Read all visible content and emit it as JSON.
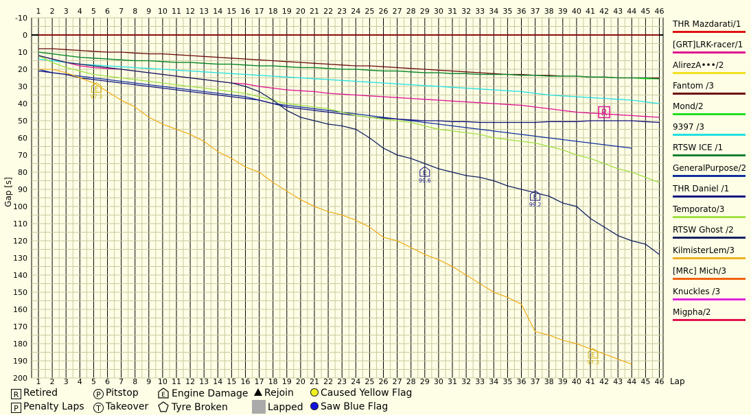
{
  "chart_data": {
    "type": "line",
    "xlabel": "Lap",
    "ylabel": "Gap [s]",
    "x": [
      1,
      2,
      3,
      4,
      5,
      6,
      7,
      8,
      9,
      10,
      11,
      12,
      13,
      14,
      15,
      16,
      17,
      18,
      19,
      20,
      21,
      22,
      23,
      24,
      25,
      26,
      27,
      28,
      29,
      30,
      31,
      32,
      33,
      34,
      35,
      36,
      37,
      38,
      39,
      40,
      41,
      42,
      43,
      44,
      45,
      46
    ],
    "xlim": [
      1,
      46.6
    ],
    "ylim": [
      -10,
      200
    ],
    "y_inverted": true,
    "yticks": [
      -10,
      0,
      10,
      20,
      30,
      40,
      50,
      60,
      70,
      80,
      90,
      100,
      110,
      120,
      130,
      140,
      150,
      160,
      170,
      180,
      190,
      200
    ],
    "grid": true,
    "series": [
      {
        "name": "THR Mazdarati/1",
        "color": "#e01010",
        "values": [
          0,
          0,
          0,
          0,
          0,
          0,
          0,
          0,
          0,
          0,
          0,
          0,
          0,
          0,
          0,
          0,
          0,
          0,
          0,
          0,
          0,
          0,
          0,
          0,
          0,
          0,
          0,
          0,
          0,
          0,
          0,
          0,
          0,
          0,
          0,
          0,
          0,
          0,
          0,
          0,
          0,
          0,
          0,
          0,
          0,
          0
        ]
      },
      {
        "name": "[GRT]LRK-racer/1",
        "color": "#e01090",
        "values": [
          12,
          14,
          16,
          18,
          19,
          19.5,
          20,
          21,
          22,
          23,
          24,
          25,
          26,
          27,
          28,
          28.5,
          30,
          31,
          32,
          32.5,
          33,
          34,
          34.5,
          35,
          35.5,
          36,
          36.5,
          37,
          37.5,
          38,
          38.5,
          39,
          39.5,
          40,
          40.5,
          41,
          42,
          43,
          44,
          45,
          45.5,
          46,
          46.5,
          47,
          47.5,
          48
        ]
      },
      {
        "name": "AlirezA•••/2",
        "color": "#f0e020",
        "values": [
          null,
          null,
          null,
          null,
          null,
          null,
          null,
          null,
          null,
          null,
          null,
          null,
          null,
          null,
          null,
          null,
          null,
          null,
          null,
          null,
          null,
          null,
          null,
          null,
          null,
          null,
          null,
          null,
          null,
          null,
          null,
          null,
          null,
          null,
          null,
          null,
          null,
          null,
          null,
          null,
          null,
          null,
          null,
          null,
          null,
          null
        ]
      },
      {
        "name": "Fantom /3",
        "color": "#6a0a0a",
        "values": [
          8,
          8,
          8.5,
          9,
          9.5,
          10,
          10,
          10.5,
          11,
          11,
          11.5,
          12,
          12.5,
          13,
          13.5,
          14,
          14.5,
          15,
          15.5,
          16,
          16.5,
          17,
          17.5,
          18,
          18,
          18.5,
          19,
          19.5,
          20,
          20.5,
          21,
          21.5,
          22,
          22.5,
          23,
          23,
          23.5,
          23.5,
          24,
          24,
          24.5,
          24.5,
          25,
          25,
          25,
          25
        ]
      },
      {
        "name": "Mond/2",
        "color": "#20e020",
        "values": [
          10,
          11,
          12,
          13,
          13.5,
          14,
          14.5,
          15,
          15,
          15.5,
          16,
          16,
          16.5,
          17,
          17,
          17.5,
          18,
          18,
          18.5,
          19,
          19,
          19.5,
          20,
          20,
          20.5,
          21,
          21,
          21.5,
          22,
          22,
          22.5,
          22.5,
          23,
          23,
          23,
          23.5,
          23.5,
          24,
          24,
          24,
          24.5,
          24.5,
          25,
          25,
          25.5,
          25.5
        ]
      },
      {
        "name": "9397 /3",
        "color": "#20e0e0",
        "values": [
          14,
          15,
          16,
          17,
          17.5,
          18,
          18.5,
          19,
          19.5,
          20,
          20.5,
          21,
          21.5,
          22,
          22.5,
          23,
          23.5,
          24,
          24.5,
          25,
          25.5,
          26,
          26.5,
          27,
          27.5,
          28,
          28.5,
          29,
          29.5,
          30,
          30.5,
          31,
          31.5,
          32,
          32.5,
          33,
          34,
          35,
          35.5,
          36,
          36.5,
          37,
          37.5,
          38,
          39,
          40
        ]
      },
      {
        "name": "RTSW ICE /1",
        "color": "#108030",
        "values": [
          10,
          11,
          12,
          13,
          13.5,
          14,
          14.5,
          15,
          15,
          15.5,
          16,
          16,
          16.5,
          17,
          17,
          17.5,
          18,
          18,
          18.5,
          19,
          19,
          19.5,
          20,
          20,
          20.5,
          21,
          21,
          21.5,
          22,
          22,
          22.5,
          22.5,
          23,
          23,
          23,
          23.5,
          23.5,
          24,
          24,
          24,
          24.5,
          24.5,
          25,
          25,
          25,
          25.5
        ]
      },
      {
        "name": "GeneralPurpose/2",
        "color": "#1030a0",
        "values": [
          20,
          22,
          23,
          24,
          25,
          26,
          27,
          28,
          29,
          30,
          31,
          32,
          33,
          34,
          35,
          36,
          38,
          40,
          41,
          42,
          43,
          44,
          45,
          46,
          47,
          48,
          49,
          50,
          51,
          52,
          53,
          54,
          55,
          56,
          57,
          58,
          59,
          60,
          61,
          62,
          63,
          64,
          65,
          66,
          null,
          null
        ]
      },
      {
        "name": "THR Daniel /1",
        "color": "#101080",
        "values": [
          21,
          22,
          23,
          25,
          26,
          27,
          28,
          29,
          30,
          31,
          32,
          33,
          34,
          35,
          36,
          37,
          38,
          40,
          42,
          43,
          44,
          45,
          46,
          47,
          48,
          48.5,
          49,
          49.5,
          50,
          50,
          50.5,
          50.5,
          51,
          51,
          51,
          51,
          51,
          50.5,
          50.5,
          50.5,
          50,
          50,
          50,
          50,
          50.5,
          51
        ]
      },
      {
        "name": "Temporato/3",
        "color": "#a0e040",
        "values": [
          12,
          16,
          19,
          21,
          23,
          24,
          25,
          26,
          27,
          28,
          29,
          30,
          31,
          32,
          33,
          34,
          36,
          38,
          40,
          41,
          42,
          43,
          45,
          47,
          48,
          49,
          50,
          51,
          53,
          55,
          56,
          57,
          58,
          60,
          61,
          62,
          63,
          65,
          67,
          70,
          72,
          75,
          78,
          80,
          83,
          86
        ]
      },
      {
        "name": "RTSW Ghost /2",
        "color": "#102060",
        "values": [
          12,
          14,
          16,
          17,
          18,
          19,
          20,
          21,
          22,
          23,
          24,
          25,
          26,
          27,
          28,
          30,
          33,
          38,
          44,
          48,
          50,
          52,
          53,
          55,
          60,
          66,
          70,
          72,
          75,
          78,
          80,
          82,
          83,
          85,
          88,
          90,
          92,
          94,
          98,
          100,
          107,
          112,
          117,
          120,
          122,
          128
        ]
      },
      {
        "name": "KilmisterLem/3",
        "color": "#f0b020",
        "values": [
          20,
          20,
          22,
          25,
          28,
          33,
          38,
          42,
          48,
          52,
          55,
          58,
          62,
          68,
          72,
          77,
          80,
          86,
          91,
          96,
          100,
          103,
          105,
          108,
          112,
          118,
          120,
          124,
          128,
          131,
          135,
          140,
          145,
          150,
          153,
          157,
          173,
          175,
          178,
          180,
          183,
          186,
          189,
          192,
          null,
          null
        ]
      },
      {
        "name": "[MRc] Mich/3",
        "color": "#f06010",
        "values": [
          null,
          null,
          null,
          null,
          null,
          null,
          null,
          null,
          null,
          null,
          null,
          null,
          null,
          null,
          null,
          null,
          null,
          null,
          null,
          null,
          null,
          null,
          null,
          null,
          null,
          null,
          null,
          null,
          null,
          null,
          null,
          null,
          null,
          null,
          null,
          null,
          null,
          null,
          null,
          null,
          null,
          null,
          null,
          null,
          null,
          null
        ]
      },
      {
        "name": "Knuckles /3",
        "color": "#e020e0",
        "values": [
          null,
          null,
          null,
          null,
          null,
          null,
          null,
          null,
          null,
          null,
          null,
          null,
          null,
          null,
          null,
          null,
          null,
          null,
          null,
          null,
          null,
          null,
          null,
          null,
          null,
          null,
          null,
          null,
          null,
          null,
          null,
          null,
          null,
          null,
          null,
          null,
          null,
          null,
          null,
          null,
          null,
          null,
          null,
          null,
          null,
          null
        ]
      },
      {
        "name": "Migpha/2",
        "color": "#e01050",
        "values": [
          null,
          null,
          null,
          null,
          null,
          null,
          null,
          null,
          null,
          null,
          null,
          null,
          null,
          null,
          null,
          null,
          null,
          null,
          null,
          null,
          null,
          null,
          null,
          null,
          null,
          null,
          null,
          null,
          null,
          null,
          null,
          null,
          null,
          null,
          null,
          null,
          null,
          null,
          null,
          null,
          null,
          null,
          null,
          null,
          null,
          null
        ]
      }
    ],
    "markers": [
      {
        "type": "engine-damage",
        "lap": 5.2,
        "gap": 31,
        "label": "97.3",
        "color": "#d0b000"
      },
      {
        "type": "engine-damage",
        "lap": 29,
        "gap": 80,
        "label": "99.6",
        "color": "#101080"
      },
      {
        "type": "engine-damage",
        "lap": 37,
        "gap": 94,
        "label": "99.2",
        "color": "#101080"
      },
      {
        "type": "engine-damage",
        "lap": 41.2,
        "gap": 186,
        "label": "97.3",
        "color": "#d0b000"
      },
      {
        "type": "retired",
        "lap": 42,
        "gap": 45,
        "label": "R",
        "color": "#e01090"
      }
    ]
  },
  "key": {
    "retired": {
      "symbol": "R",
      "label": "Retired"
    },
    "penalty": {
      "symbol": "P",
      "label": "Penalty Laps"
    },
    "pitstop": {
      "symbol": "P",
      "label": "Pitstop"
    },
    "takeover": {
      "symbol": "T",
      "label": "Takeover"
    },
    "engine": {
      "symbol": "E",
      "label": "Engine Damage"
    },
    "tyre": {
      "label": "Tyre Broken"
    },
    "rejoin": {
      "label": "Rejoin"
    },
    "lapped": {
      "label": "Lapped"
    },
    "yellow": {
      "label": "Caused Yellow Flag",
      "color": "#f0f020"
    },
    "blue": {
      "label": "Saw Blue Flag",
      "color": "#1010e0"
    }
  }
}
